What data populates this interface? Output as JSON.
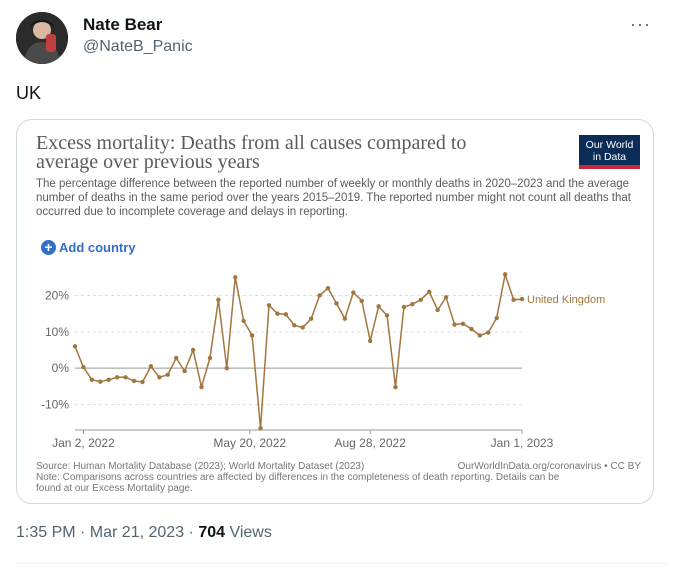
{
  "tweet": {
    "author_name": "Nate Bear",
    "author_handle": "@NateB_Panic",
    "more_icon": "more-horizontal-icon",
    "text": "UK",
    "timestamp": "1:35 PM · Mar 21, 2023",
    "separator": " · ",
    "views_count": "704",
    "views_label": " Views"
  },
  "card": {
    "title": "Excess mortality: Deaths from all causes compared to average over previous years",
    "subtitle": "The percentage difference between the reported number of weekly or monthly deaths in 2020–2023 and the average number of deaths in the same period over the years 2015–2019. The reported number might not count all deaths that occurred due to incomplete coverage and delays in reporting.",
    "logo_line1": "Our World",
    "logo_line2": "in Data",
    "add_country_label": "Add country",
    "source": "Source: Human Mortality Database (2023); World Mortality Dataset (2023)",
    "note": "Note: Comparisons across countries are affected by differences in the completeness of death reporting. Details can be found at our Excess Mortality page.",
    "credit": "OurWorldInData.org/coronavirus • CC BY"
  },
  "colors": {
    "series": "#a2763e",
    "link": "#2f6fc9",
    "logo_bg": "#0a2c57",
    "logo_accent": "#c8253d"
  },
  "chart_data": {
    "type": "line",
    "ylim": [
      -17,
      27
    ],
    "yticks": [
      -10,
      0,
      10,
      20
    ],
    "ytick_labels": [
      "-10%",
      "0%",
      "10%",
      "20%"
    ],
    "xtick_labels": [
      "Jan 2, 2022",
      "May 20, 2022",
      "Aug 28, 2022",
      "Jan 1, 2023"
    ],
    "xtick_dates": [
      "2022-01-02",
      "2022-05-20",
      "2022-08-28",
      "2023-01-01"
    ],
    "grid": true,
    "series": [
      {
        "name": "United Kingdom",
        "x": [
          "2021-12-26",
          "2022-01-02",
          "2022-01-09",
          "2022-01-16",
          "2022-01-23",
          "2022-01-30",
          "2022-02-06",
          "2022-02-13",
          "2022-02-20",
          "2022-02-27",
          "2022-03-06",
          "2022-03-13",
          "2022-03-20",
          "2022-03-27",
          "2022-04-03",
          "2022-04-10",
          "2022-04-17",
          "2022-04-24",
          "2022-05-01",
          "2022-05-08",
          "2022-05-15",
          "2022-05-22",
          "2022-05-29",
          "2022-06-05",
          "2022-06-12",
          "2022-06-19",
          "2022-06-26",
          "2022-07-03",
          "2022-07-10",
          "2022-07-17",
          "2022-07-24",
          "2022-07-31",
          "2022-08-07",
          "2022-08-14",
          "2022-08-21",
          "2022-08-28",
          "2022-09-04",
          "2022-09-11",
          "2022-09-18",
          "2022-09-25",
          "2022-10-02",
          "2022-10-09",
          "2022-10-16",
          "2022-10-23",
          "2022-10-30",
          "2022-11-06",
          "2022-11-13",
          "2022-11-20",
          "2022-11-27",
          "2022-12-04",
          "2022-12-11",
          "2022-12-18",
          "2022-12-25",
          "2023-01-01"
        ],
        "values": [
          6.0,
          0.3,
          -3.2,
          -3.7,
          -3.2,
          -2.5,
          -2.5,
          -3.5,
          -3.8,
          0.5,
          -2.5,
          -1.8,
          2.8,
          -0.8,
          5.0,
          -5.2,
          2.8,
          18.8,
          0.0,
          25.0,
          13.0,
          9.0,
          -16.5,
          17.3,
          15.0,
          14.8,
          11.8,
          11.2,
          13.6,
          20.0,
          22.0,
          17.8,
          13.6,
          20.8,
          18.5,
          7.5,
          17.0,
          14.5,
          -5.2,
          16.8,
          17.6,
          18.8,
          21.0,
          16.0,
          19.5,
          12.0,
          12.2,
          10.8,
          9.0,
          9.8,
          13.8,
          25.8,
          18.8,
          19.0
        ]
      }
    ]
  }
}
